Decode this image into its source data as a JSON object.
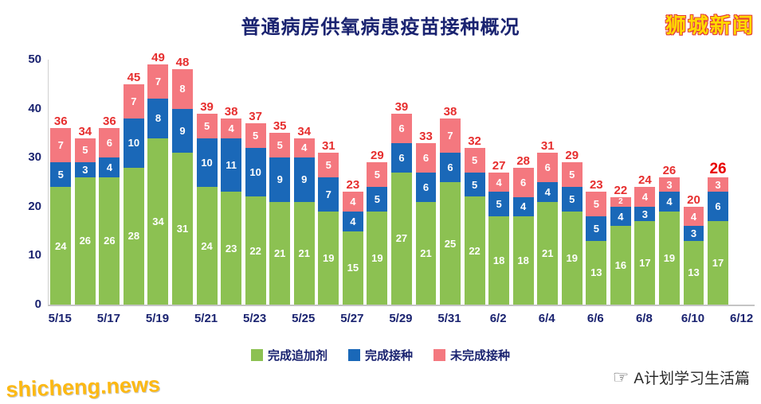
{
  "header": {
    "title": "普通病房供氧病患疫苗接种概况"
  },
  "branding": {
    "logo_text": "狮城新闻",
    "watermark_text": "shicheng.news",
    "credit_text": "A计划学习生活篇",
    "credit_icon": "pointing-hand-icon"
  },
  "colors": {
    "title_navy": "#1a2370",
    "total_label_red": "#e62e2e",
    "final_total_red": "#e80000",
    "booster_green": "#8cc152",
    "vaccinated_blue": "#1a68b8",
    "unvaccinated_pink": "#f4787f",
    "logo_yellow": "#ffd900",
    "logo_outline_red": "#e23b3b",
    "watermark_yellow": "#fdb913"
  },
  "chart_data": {
    "type": "bar",
    "stacked": true,
    "grid": false,
    "legend_position": "bottom",
    "title": "普通病房供氧病患疫苗接种概况",
    "xlabel": "",
    "ylabel": "",
    "ylim": [
      0,
      50
    ],
    "yticks": [
      0,
      10,
      20,
      30,
      40,
      50
    ],
    "categories": [
      "5/15",
      "5/16",
      "5/17",
      "5/18",
      "5/19",
      "5/20",
      "5/21",
      "5/22",
      "5/23",
      "5/24",
      "5/25",
      "5/26",
      "5/27",
      "5/28",
      "5/29",
      "5/30",
      "5/31",
      "6/1",
      "6/2",
      "6/3",
      "6/4",
      "6/5",
      "6/6",
      "6/7",
      "6/8",
      "6/9",
      "6/10",
      "6/11"
    ],
    "x_tick_labels": [
      "5/15",
      "5/17",
      "5/19",
      "5/21",
      "5/23",
      "5/25",
      "5/27",
      "5/29",
      "5/31",
      "6/2",
      "6/4",
      "6/6",
      "6/8",
      "6/10",
      "6/12"
    ],
    "series": [
      {
        "name": "完成追加剂",
        "color": "#8cc152",
        "values": [
          24,
          26,
          26,
          28,
          34,
          31,
          24,
          23,
          22,
          21,
          21,
          19,
          15,
          19,
          27,
          21,
          25,
          22,
          18,
          18,
          21,
          19,
          13,
          16,
          17,
          19,
          13,
          17
        ]
      },
      {
        "name": "完成接种",
        "color": "#1a68b8",
        "values": [
          5,
          3,
          4,
          10,
          8,
          9,
          10,
          11,
          10,
          9,
          9,
          7,
          4,
          5,
          6,
          6,
          6,
          5,
          5,
          4,
          4,
          5,
          5,
          4,
          3,
          4,
          3,
          6
        ]
      },
      {
        "name": "未完成接种",
        "color": "#f4787f",
        "values": [
          7,
          5,
          6,
          7,
          7,
          8,
          5,
          4,
          5,
          5,
          4,
          5,
          4,
          5,
          6,
          6,
          7,
          5,
          4,
          6,
          6,
          5,
          5,
          2,
          4,
          3,
          4,
          3
        ]
      }
    ],
    "totals": [
      36,
      34,
      36,
      45,
      49,
      48,
      39,
      38,
      37,
      35,
      34,
      31,
      23,
      29,
      39,
      33,
      38,
      32,
      27,
      28,
      31,
      29,
      23,
      22,
      24,
      26,
      20,
      26
    ]
  }
}
